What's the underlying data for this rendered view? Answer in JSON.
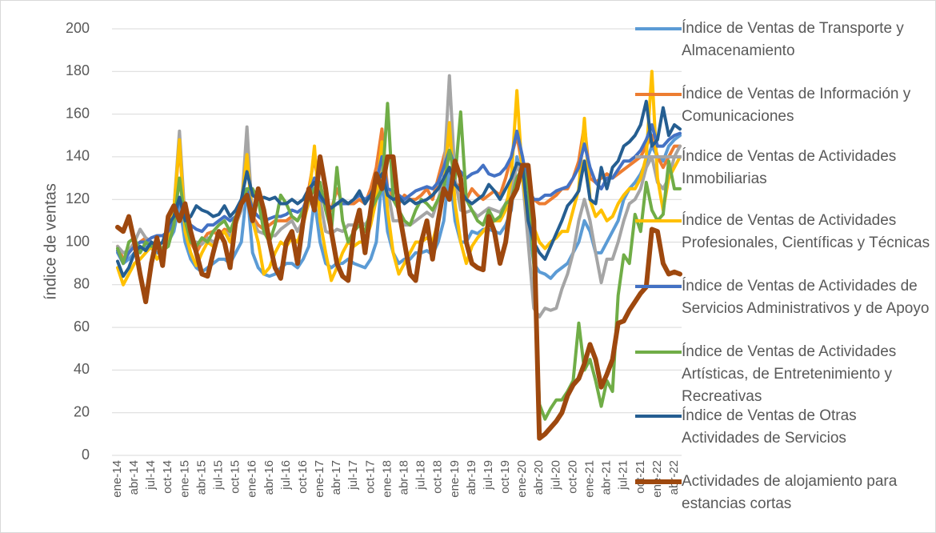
{
  "chart_data": {
    "type": "line",
    "y_label": "índice de ventas",
    "categories": [
      "ene-14",
      null,
      null,
      "abr-14",
      null,
      null,
      "jul-14",
      null,
      null,
      "oct-14",
      null,
      null,
      "ene-15",
      null,
      null,
      "abr-15",
      null,
      null,
      "jul-15",
      null,
      null,
      "oct-15",
      null,
      null,
      "ene-16",
      null,
      null,
      "abr-16",
      null,
      null,
      "jul-16",
      null,
      null,
      "oct-16",
      null,
      null,
      "ene-17",
      null,
      null,
      "abr-17",
      null,
      null,
      "jul-17",
      null,
      null,
      "oct-17",
      null,
      null,
      "ene-18",
      null,
      null,
      "abr-18",
      null,
      null,
      "jul-18",
      null,
      null,
      "oct-18",
      null,
      null,
      "ene-19",
      null,
      null,
      "abr-19",
      null,
      null,
      "jul-19",
      null,
      null,
      "oct-19",
      null,
      null,
      "ene-20",
      null,
      null,
      "abr-20",
      null,
      null,
      "jul-20",
      null,
      null,
      "oct-20",
      null,
      null,
      "ene-21",
      null,
      null,
      "abr-21",
      null,
      null,
      "jul-21",
      null,
      null,
      "oct-21",
      null,
      null,
      "ene-22",
      null,
      null,
      "abr-22",
      null
    ],
    "ylim": [
      0,
      200
    ],
    "yticks": [
      0,
      20,
      40,
      60,
      80,
      100,
      120,
      140,
      160,
      180,
      200
    ],
    "grid": true,
    "legend": "right",
    "series": [
      {
        "name": "Índice de Ventas de Transporte y Almacenamiento",
        "color": "#5b9bd5",
        "values": [
          95,
          90,
          92,
          95,
          96,
          98,
          97,
          95,
          96,
          100,
          105,
          118,
          100,
          92,
          88,
          86,
          88,
          90,
          92,
          92,
          90,
          95,
          100,
          125,
          95,
          88,
          85,
          84,
          85,
          88,
          90,
          90,
          88,
          92,
          98,
          120,
          100,
          90,
          88,
          90,
          90,
          92,
          90,
          89,
          88,
          92,
          100,
          130,
          105,
          95,
          90,
          92,
          92,
          95,
          95,
          96,
          94,
          100,
          110,
          135,
          110,
          100,
          100,
          105,
          104,
          106,
          106,
          105,
          104,
          108,
          115,
          140,
          130,
          110,
          90,
          86,
          85,
          83,
          86,
          88,
          90,
          95,
          100,
          110,
          105,
          95,
          95,
          100,
          105,
          110,
          120,
          125,
          128,
          132,
          138,
          145,
          140,
          138,
          145,
          148,
          150
        ]
      },
      {
        "name": "Índice de Ventas de Información y Comunicaciones",
        "color": "#ed7d31",
        "values": [
          98,
          92,
          95,
          98,
          100,
          102,
          100,
          98,
          100,
          105,
          115,
          146,
          108,
          100,
          95,
          100,
          104,
          105,
          103,
          106,
          105,
          110,
          118,
          140,
          112,
          108,
          106,
          108,
          110,
          110,
          110,
          112,
          110,
          115,
          125,
          140,
          120,
          118,
          115,
          125,
          118,
          118,
          118,
          120,
          118,
          125,
          135,
          153,
          125,
          120,
          118,
          122,
          120,
          120,
          122,
          125,
          120,
          130,
          140,
          150,
          128,
          125,
          120,
          125,
          122,
          120,
          122,
          124,
          122,
          130,
          140,
          150,
          135,
          125,
          120,
          118,
          118,
          120,
          122,
          125,
          125,
          130,
          138,
          155,
          130,
          128,
          130,
          132,
          130,
          132,
          134,
          136,
          138,
          140,
          145,
          150,
          140,
          135,
          140,
          145,
          145
        ]
      },
      {
        "name": "Índice de Ventas de Actividades Inmobiliarias",
        "color": "#a5a5a5",
        "values": [
          98,
          95,
          96,
          100,
          106,
          102,
          100,
          98,
          100,
          105,
          115,
          152,
          110,
          100,
          100,
          99,
          102,
          100,
          102,
          105,
          103,
          108,
          115,
          154,
          110,
          105,
          104,
          103,
          103,
          106,
          108,
          110,
          105,
          110,
          118,
          130,
          120,
          105,
          104,
          106,
          105,
          108,
          108,
          110,
          108,
          112,
          120,
          137,
          125,
          110,
          110,
          108,
          108,
          110,
          112,
          114,
          112,
          120,
          130,
          178,
          130,
          115,
          114,
          115,
          112,
          114,
          116,
          115,
          114,
          118,
          125,
          136,
          130,
          100,
          69,
          65,
          69,
          68,
          69,
          78,
          85,
          95,
          110,
          120,
          110,
          95,
          81,
          92,
          92,
          100,
          110,
          118,
          120,
          125,
          135,
          140,
          128,
          125,
          130,
          140,
          145
        ]
      },
      {
        "name": "Índice de Ventas de Actividades Profesionales, Científicas y Técnicas",
        "color": "#ffc000",
        "values": [
          88,
          80,
          85,
          90,
          92,
          95,
          98,
          92,
          95,
          102,
          115,
          148,
          105,
          95,
          89,
          95,
          100,
          98,
          102,
          105,
          100,
          108,
          118,
          141,
          110,
          100,
          85,
          88,
          95,
          100,
          98,
          102,
          100,
          108,
          120,
          145,
          110,
          95,
          82,
          88,
          95,
          100,
          98,
          100,
          100,
          108,
          120,
          147,
          115,
          95,
          85,
          90,
          95,
          100,
          100,
          102,
          100,
          110,
          125,
          156,
          118,
          100,
          90,
          98,
          102,
          105,
          108,
          110,
          110,
          115,
          130,
          171,
          130,
          110,
          107,
          100,
          97,
          100,
          102,
          105,
          105,
          115,
          125,
          158,
          120,
          112,
          115,
          110,
          112,
          118,
          122,
          125,
          125,
          130,
          140,
          180,
          130,
          115,
          130,
          135,
          140
        ]
      },
      {
        "name": "Índice de Ventas de Actividades de Servicios Administrativos y de Apoyo",
        "color": "#4472c4",
        "values": [
          96,
          90,
          95,
          98,
          100,
          100,
          102,
          103,
          103,
          105,
          110,
          120,
          112,
          108,
          106,
          105,
          108,
          108,
          110,
          112,
          110,
          112,
          118,
          125,
          115,
          112,
          110,
          111,
          112,
          112,
          113,
          115,
          114,
          116,
          122,
          130,
          120,
          118,
          116,
          118,
          118,
          118,
          120,
          122,
          120,
          122,
          128,
          140,
          125,
          124,
          122,
          120,
          122,
          124,
          125,
          126,
          125,
          128,
          135,
          143,
          135,
          133,
          130,
          132,
          133,
          136,
          132,
          131,
          132,
          135,
          140,
          152,
          140,
          125,
          120,
          120,
          122,
          122,
          124,
          125,
          126,
          130,
          135,
          146,
          135,
          128,
          125,
          130,
          130,
          134,
          138,
          138,
          140,
          143,
          148,
          155,
          145,
          145,
          148,
          150,
          151
        ]
      },
      {
        "name": "Índice de Ventas de Actividades Artísticas, de Entretenimiento y Recreativas",
        "color": "#70ad47",
        "values": [
          97,
          90,
          100,
          102,
          95,
          100,
          98,
          101,
          96,
          98,
          108,
          130,
          110,
          100,
          98,
          102,
          100,
          105,
          108,
          110,
          105,
          112,
          118,
          125,
          125,
          120,
          105,
          100,
          108,
          122,
          118,
          112,
          110,
          115,
          120,
          125,
          128,
          115,
          105,
          135,
          110,
          100,
          105,
          108,
          105,
          115,
          120,
          125,
          165,
          120,
          115,
          110,
          108,
          115,
          120,
          118,
          115,
          120,
          125,
          143,
          130,
          161,
          120,
          115,
          110,
          108,
          115,
          110,
          112,
          118,
          120,
          130,
          135,
          125,
          90,
          24,
          17,
          22,
          26,
          26,
          30,
          35,
          62,
          40,
          45,
          35,
          23,
          35,
          30,
          75,
          94,
          90,
          113,
          105,
          128,
          115,
          110,
          113,
          138,
          125,
          125
        ]
      },
      {
        "name": "Índice de Ventas de Otras Actividades de Servicios",
        "color": "#255e91",
        "values": [
          91,
          84,
          88,
          95,
          98,
          96,
          100,
          98,
          100,
          108,
          112,
          121,
          110,
          112,
          117,
          115,
          114,
          112,
          113,
          117,
          112,
          115,
          120,
          133,
          122,
          120,
          121,
          120,
          121,
          118,
          118,
          120,
          118,
          120,
          125,
          128,
          122,
          118,
          116,
          118,
          120,
          118,
          120,
          124,
          118,
          122,
          128,
          132,
          122,
          120,
          121,
          118,
          120,
          118,
          119,
          120,
          122,
          125,
          130,
          135,
          127,
          124,
          120,
          118,
          120,
          122,
          127,
          124,
          120,
          125,
          130,
          137,
          136,
          110,
          100,
          95,
          92,
          98,
          104,
          110,
          117,
          120,
          124,
          138,
          120,
          118,
          135,
          125,
          135,
          138,
          145,
          147,
          150,
          155,
          166,
          145,
          148,
          163,
          150,
          155,
          153
        ]
      },
      {
        "name": "Actividades de alojamiento para estancias cortas",
        "color": "#9e480e",
        "values": [
          107,
          105,
          112,
          100,
          85,
          72,
          90,
          102,
          89,
          112,
          117,
          110,
          118,
          105,
          95,
          85,
          84,
          95,
          105,
          100,
          88,
          110,
          118,
          122,
          110,
          125,
          115,
          100,
          88,
          83,
          100,
          105,
          90,
          110,
          125,
          115,
          140,
          125,
          105,
          90,
          84,
          82,
          105,
          115,
          95,
          115,
          132,
          125,
          140,
          140,
          115,
          100,
          85,
          82,
          100,
          110,
          92,
          110,
          125,
          120,
          138,
          130,
          100,
          90,
          88,
          87,
          112,
          105,
          90,
          100,
          120,
          125,
          136,
          136,
          110,
          8,
          10,
          13,
          16,
          20,
          28,
          33,
          36,
          43,
          52,
          45,
          32,
          38,
          45,
          62,
          63,
          68,
          72,
          76,
          79,
          106,
          105,
          90,
          85,
          86,
          85
        ]
      }
    ]
  }
}
